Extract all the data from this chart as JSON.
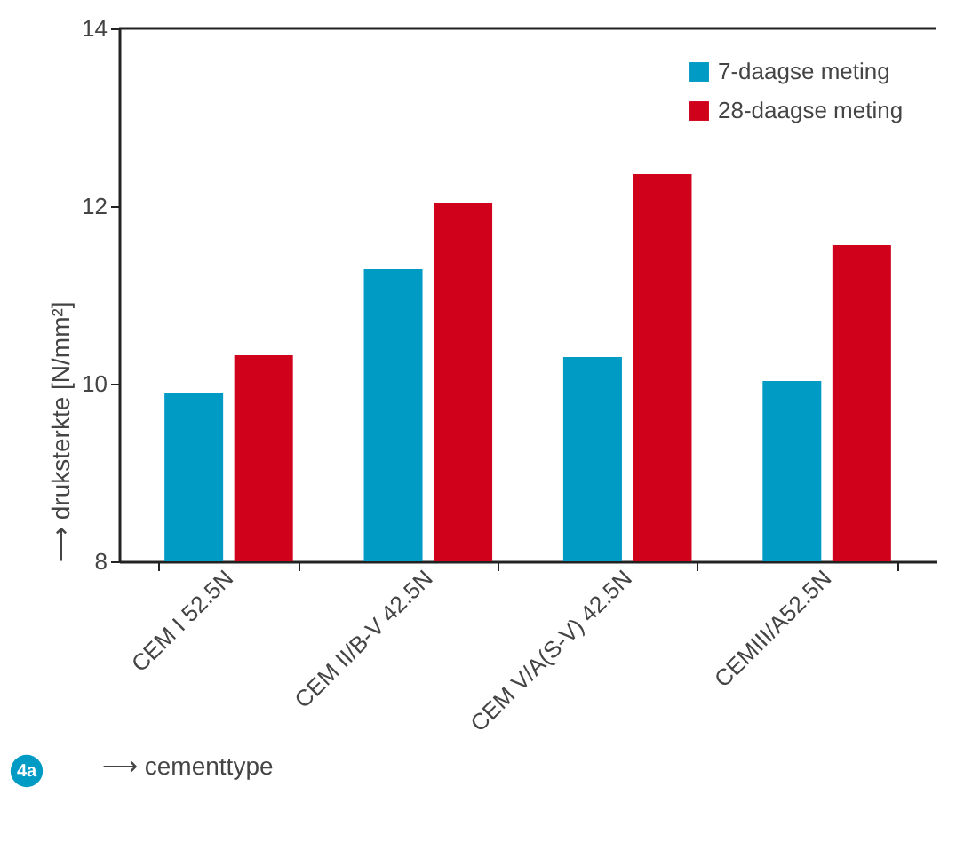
{
  "chart_data": {
    "type": "bar",
    "categories": [
      "CEM I 52.5N",
      "CEM II/B-V 42.5N",
      "CEM V/A(S-V) 42.5N",
      "CEMIII/A52.5N"
    ],
    "series": [
      {
        "name": "7-daagse meting",
        "color": "#009bc4",
        "values": [
          9.89,
          11.29,
          10.3,
          10.03
        ]
      },
      {
        "name": "28-daagse meting",
        "color": "#d0021b",
        "values": [
          10.32,
          12.04,
          12.36,
          11.56
        ]
      }
    ],
    "xlabel": "⟶ cementtype",
    "ylabel": "⟶ druksterkte [N/mm²]",
    "ylim": [
      8,
      14
    ],
    "yticks": [
      8,
      10,
      12,
      14
    ],
    "grid": false,
    "legend": "top right",
    "annotations": [
      "4a"
    ]
  }
}
